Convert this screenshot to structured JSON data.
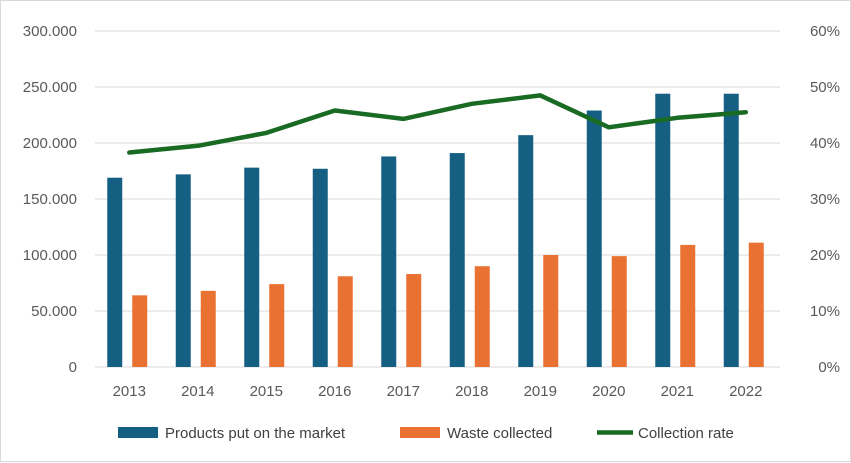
{
  "chart_data": {
    "type": "bar",
    "title": "",
    "categories": [
      "2013",
      "2014",
      "2015",
      "2016",
      "2017",
      "2018",
      "2019",
      "2020",
      "2021",
      "2022"
    ],
    "series": [
      {
        "name": "Products put on the market",
        "chart": "bar",
        "axis": "left",
        "color": "#156082",
        "values": [
          169000,
          172000,
          178000,
          177000,
          188000,
          191000,
          207000,
          229000,
          244000,
          244000
        ]
      },
      {
        "name": "Waste collected",
        "chart": "bar",
        "axis": "left",
        "color": "#e97132",
        "values": [
          64000,
          68000,
          74000,
          81000,
          83000,
          90000,
          100000,
          99000,
          109000,
          111000
        ]
      },
      {
        "name": "Collection rate",
        "chart": "line",
        "axis": "right",
        "color": "#196b24",
        "values": [
          38.3,
          39.5,
          41.8,
          45.8,
          44.3,
          47.0,
          48.5,
          42.8,
          44.5,
          45.5
        ]
      }
    ],
    "y_left": {
      "ylim": [
        0,
        300000
      ],
      "ticks": [
        0,
        50000,
        100000,
        150000,
        200000,
        250000,
        300000
      ],
      "tick_labels": [
        "0",
        "50.000",
        "100.000",
        "150.000",
        "200.000",
        "250.000",
        "300.000"
      ]
    },
    "y_right": {
      "ylim": [
        0,
        60
      ],
      "ticks": [
        0,
        10,
        20,
        30,
        40,
        50,
        60
      ],
      "tick_labels": [
        "0%",
        "10%",
        "20%",
        "30%",
        "40%",
        "50%",
        "60%"
      ]
    },
    "grid": true,
    "legend_position": "bottom"
  }
}
